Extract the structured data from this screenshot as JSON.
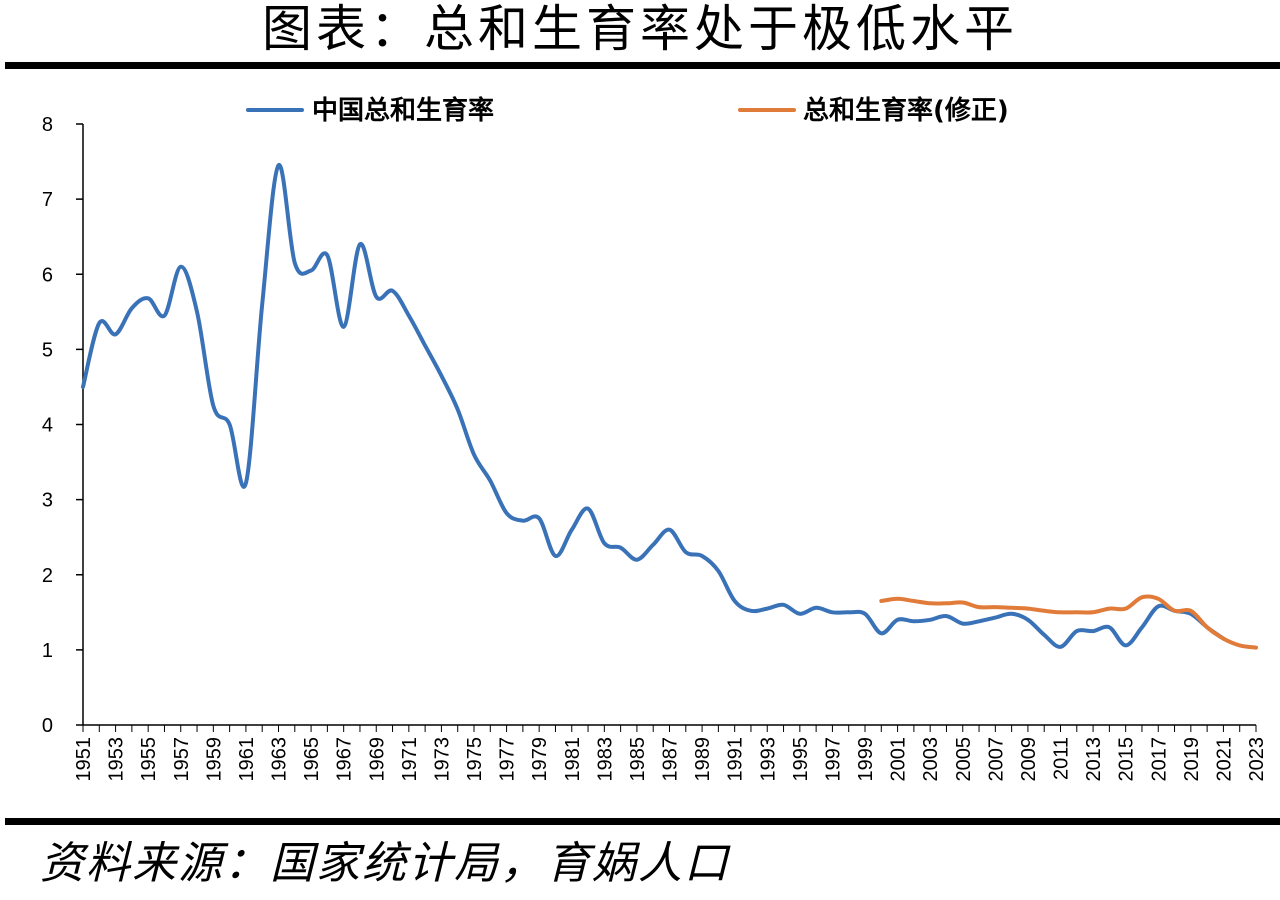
{
  "page": {
    "title": "图表：总和生育率处于极低水平",
    "source": "资料来源：国家统计局，育娲人口"
  },
  "chart_data": {
    "type": "line",
    "title": "图表：总和生育率处于极低水平",
    "xlabel": "",
    "ylabel": "",
    "ylim": [
      0,
      8
    ],
    "yticks": [
      "0",
      "1",
      "2",
      "3",
      "4",
      "5",
      "6",
      "7",
      "8"
    ],
    "xlim": [
      1951,
      2023
    ],
    "xtick_labels": [
      "1951",
      "1953",
      "1955",
      "1957",
      "1959",
      "1961",
      "1963",
      "1965",
      "1967",
      "1969",
      "1971",
      "1973",
      "1975",
      "1977",
      "1979",
      "1981",
      "1983",
      "1985",
      "1987",
      "1989",
      "1991",
      "1993",
      "1995",
      "1997",
      "1999",
      "2001",
      "2003",
      "2005",
      "2007",
      "2009",
      "2011",
      "2013",
      "2015",
      "2017",
      "2019",
      "2021",
      "2023"
    ],
    "grid": false,
    "legend_position": "top",
    "series": [
      {
        "name": "中国总和生育率",
        "color": "#3a72b8",
        "x": [
          1951,
          1952,
          1953,
          1954,
          1955,
          1956,
          1957,
          1958,
          1959,
          1960,
          1961,
          1962,
          1963,
          1964,
          1965,
          1966,
          1967,
          1968,
          1969,
          1970,
          1971,
          1972,
          1973,
          1974,
          1975,
          1976,
          1977,
          1978,
          1979,
          1980,
          1981,
          1982,
          1983,
          1984,
          1985,
          1986,
          1987,
          1988,
          1989,
          1990,
          1991,
          1992,
          1993,
          1994,
          1995,
          1996,
          1997,
          1998,
          1999,
          2000,
          2001,
          2002,
          2003,
          2004,
          2005,
          2006,
          2007,
          2008,
          2009,
          2010,
          2011,
          2012,
          2013,
          2014,
          2015,
          2016,
          2017,
          2018,
          2019,
          2020,
          2021
        ],
        "y": [
          4.5,
          5.35,
          5.2,
          5.55,
          5.68,
          5.45,
          6.1,
          5.5,
          4.25,
          4.0,
          3.22,
          5.6,
          7.45,
          6.15,
          6.05,
          6.25,
          5.3,
          6.4,
          5.7,
          5.78,
          5.45,
          5.05,
          4.65,
          4.2,
          3.6,
          3.25,
          2.82,
          2.72,
          2.75,
          2.25,
          2.6,
          2.88,
          2.42,
          2.36,
          2.2,
          2.4,
          2.6,
          2.3,
          2.25,
          2.05,
          1.65,
          1.52,
          1.55,
          1.6,
          1.48,
          1.56,
          1.5,
          1.5,
          1.48,
          1.22,
          1.4,
          1.38,
          1.4,
          1.45,
          1.35,
          1.38,
          1.43,
          1.48,
          1.4,
          1.2,
          1.04,
          1.25,
          1.25,
          1.3,
          1.06,
          1.3,
          1.58,
          1.52,
          1.48,
          1.3,
          1.15
        ]
      },
      {
        "name": "总和生育率(修正)",
        "color": "#e07b39",
        "x": [
          2000,
          2001,
          2002,
          2003,
          2004,
          2005,
          2006,
          2007,
          2008,
          2009,
          2010,
          2011,
          2012,
          2013,
          2014,
          2015,
          2016,
          2017,
          2018,
          2019,
          2020,
          2021,
          2022,
          2023
        ],
        "y": [
          1.65,
          1.68,
          1.65,
          1.62,
          1.62,
          1.63,
          1.57,
          1.57,
          1.56,
          1.55,
          1.52,
          1.5,
          1.5,
          1.5,
          1.55,
          1.55,
          1.7,
          1.68,
          1.52,
          1.52,
          1.3,
          1.15,
          1.06,
          1.03
        ]
      }
    ]
  }
}
